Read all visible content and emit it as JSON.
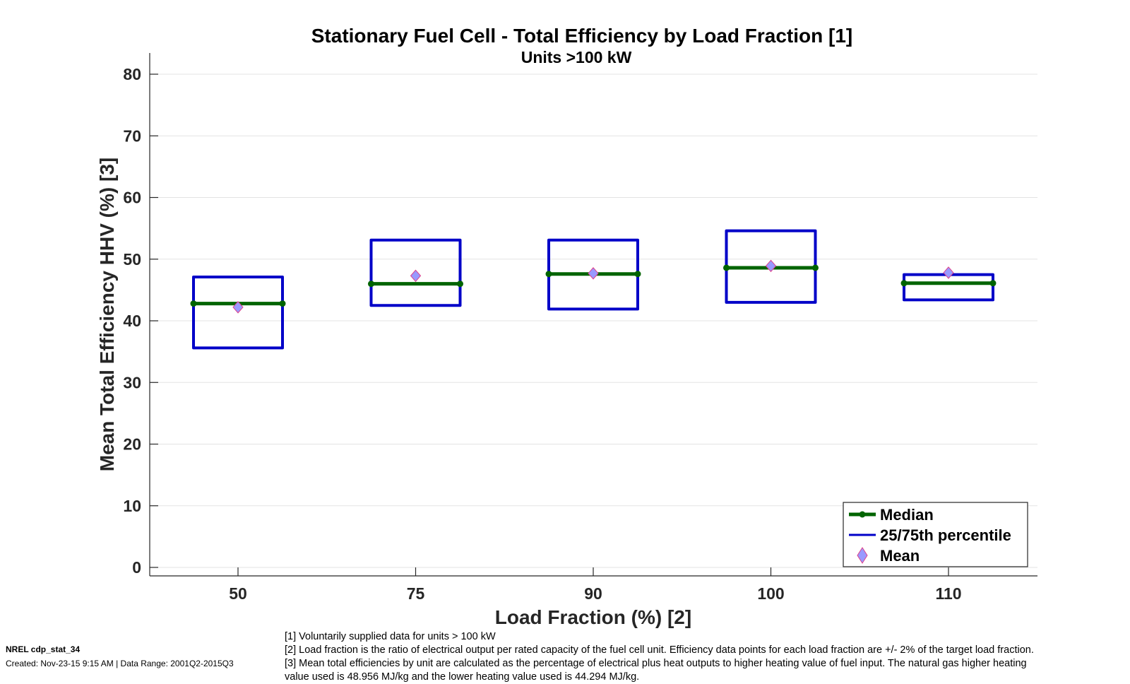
{
  "chart_data": {
    "type": "box",
    "title": "Stationary Fuel Cell - Total Efficiency by Load Fraction [1]",
    "subtitle": "Units >100 kW",
    "xlabel": "Load Fraction (%) [2]",
    "ylabel": "Mean Total Efficiency HHV (%) [3]",
    "ylim": [
      0,
      80
    ],
    "yticks": [
      0,
      10,
      20,
      30,
      40,
      50,
      60,
      70,
      80
    ],
    "grid": true,
    "categories": [
      "50",
      "75",
      "90",
      "100",
      "110"
    ],
    "series": [
      {
        "name": "Median",
        "color": "#006400",
        "values": [
          42.8,
          46.0,
          47.6,
          48.6,
          46.1
        ]
      },
      {
        "name": "25th percentile",
        "color": "#0000C8",
        "values": [
          35.6,
          42.5,
          41.9,
          43.0,
          43.4
        ]
      },
      {
        "name": "75th percentile",
        "color": "#0000C8",
        "values": [
          47.1,
          53.1,
          53.1,
          54.6,
          47.5
        ]
      },
      {
        "name": "Mean",
        "color": "#9999FF",
        "edge_color": "#E0408A",
        "values": [
          42.2,
          47.3,
          47.7,
          48.9,
          47.8
        ]
      }
    ],
    "legend": {
      "position": "bottom-right",
      "entries": [
        "Median",
        "25/75th percentile",
        "Mean"
      ]
    }
  },
  "footer": {
    "id": "NREL cdp_stat_34",
    "created": "Created: Nov-23-15  9:15 AM | Data Range: 2001Q2-2015Q3",
    "notes": [
      "[1] Voluntarily supplied data for units > 100 kW",
      "[2] Load fraction is the ratio of electrical output per rated capacity of the fuel cell unit. Efficiency data points for each load fraction are +/- 2% of the target load fraction.",
      "[3] Mean total efficiencies by unit are calculated as the percentage of electrical plus heat outputs to higher heating value of fuel input. The natural gas higher heating",
      "value used is 48.956 MJ/kg and the lower heating value used is 44.294 MJ/kg."
    ]
  }
}
